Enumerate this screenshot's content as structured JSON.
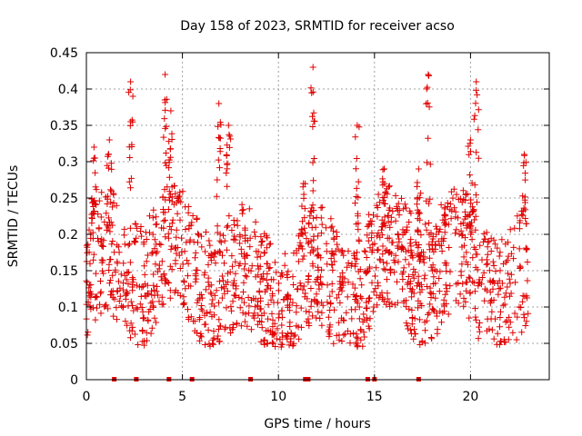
{
  "chart_data": {
    "type": "scatter",
    "title": "Day 158 of 2023, SRMTID for receiver acso",
    "xlabel": "GPS time / hours",
    "ylabel": "SRMTID / TECUs",
    "xlim": [
      0,
      24.1
    ],
    "ylim": [
      0,
      0.45
    ],
    "x_ticks": [
      0,
      5,
      10,
      15,
      20
    ],
    "x_tick_labels": [
      "0",
      "5",
      "10",
      "15",
      "20"
    ],
    "y_ticks": [
      0,
      0.05,
      0.1,
      0.15,
      0.2,
      0.25,
      0.3,
      0.35,
      0.4,
      0.45
    ],
    "y_tick_labels": [
      "0",
      "0.05",
      "0.1",
      "0.15",
      "0.2",
      "0.25",
      "0.3",
      "0.35",
      "0.4",
      "0.45"
    ],
    "grid": true,
    "marker": "plus",
    "colors": {
      "series": "#e00000",
      "grid": "#a0a0a0",
      "axes": "#000000"
    },
    "zero_points_x": [
      1.45,
      2.6,
      4.3,
      5.5,
      8.55,
      11.4,
      11.55,
      14.65,
      15.0,
      17.3
    ],
    "dense_band_x": [
      0,
      23.0
    ],
    "peaks": [
      {
        "x": 0.4,
        "y": 0.32
      },
      {
        "x": 1.2,
        "y": 0.33
      },
      {
        "x": 2.3,
        "y": 0.41
      },
      {
        "x": 4.1,
        "y": 0.42
      },
      {
        "x": 4.4,
        "y": 0.37
      },
      {
        "x": 6.9,
        "y": 0.38
      },
      {
        "x": 7.4,
        "y": 0.35
      },
      {
        "x": 11.3,
        "y": 0.27
      },
      {
        "x": 11.8,
        "y": 0.43
      },
      {
        "x": 14.1,
        "y": 0.35
      },
      {
        "x": 15.5,
        "y": 0.29
      },
      {
        "x": 17.3,
        "y": 0.29
      },
      {
        "x": 17.8,
        "y": 0.42
      },
      {
        "x": 20.0,
        "y": 0.33
      },
      {
        "x": 20.3,
        "y": 0.41
      },
      {
        "x": 22.8,
        "y": 0.31
      }
    ]
  }
}
